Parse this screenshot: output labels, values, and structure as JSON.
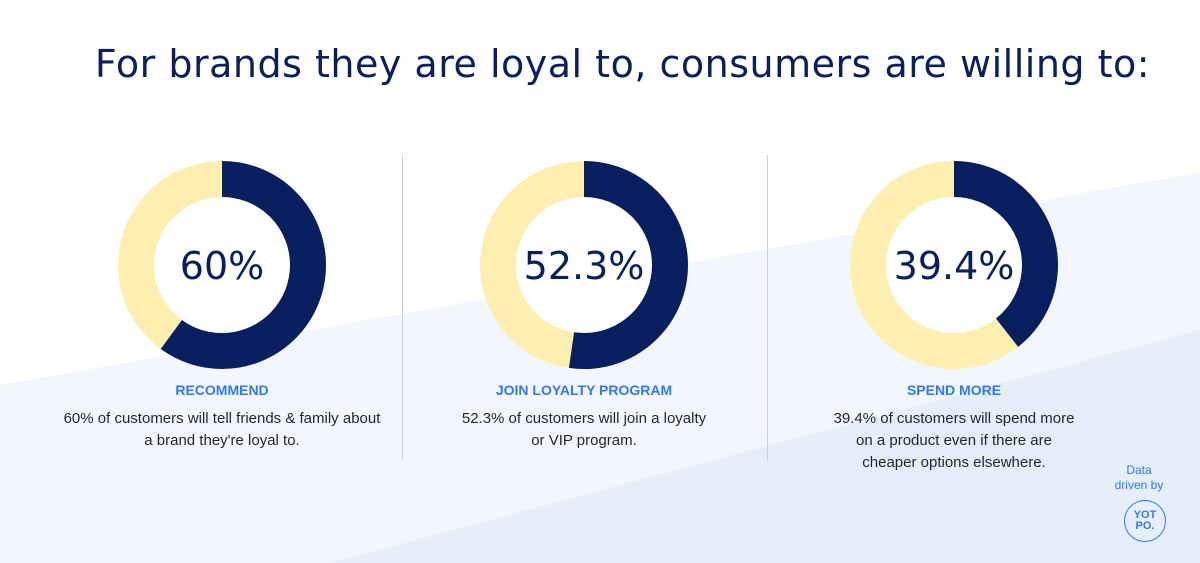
{
  "title": "For brands they are loyal to, consumers are willing to:",
  "colors": {
    "filled": "#071f5e",
    "remainder": "#fdefaf",
    "accent": "#2f7af0",
    "title": "#0a1f5c"
  },
  "chart_data": [
    {
      "type": "pie",
      "variant": "donut",
      "center_label": "60%",
      "values": [
        60,
        40
      ],
      "label": "RECOMMEND",
      "description": "60% of customers will tell friends & family about a brand they're loyal to."
    },
    {
      "type": "pie",
      "variant": "donut",
      "center_label": "52.3%",
      "values": [
        52.3,
        47.7
      ],
      "label": "JOIN LOYALTY PROGRAM",
      "description": "52.3% of customers will join a loyalty or VIP program."
    },
    {
      "type": "pie",
      "variant": "donut",
      "center_label": "39.4%",
      "values": [
        39.4,
        60.6
      ],
      "label": "SPEND MORE",
      "description": "39.4% of customers will spend more on a product even if there are cheaper options elsewhere."
    }
  ],
  "credit": {
    "text": "Data driven by",
    "logo": "YOT PO."
  }
}
